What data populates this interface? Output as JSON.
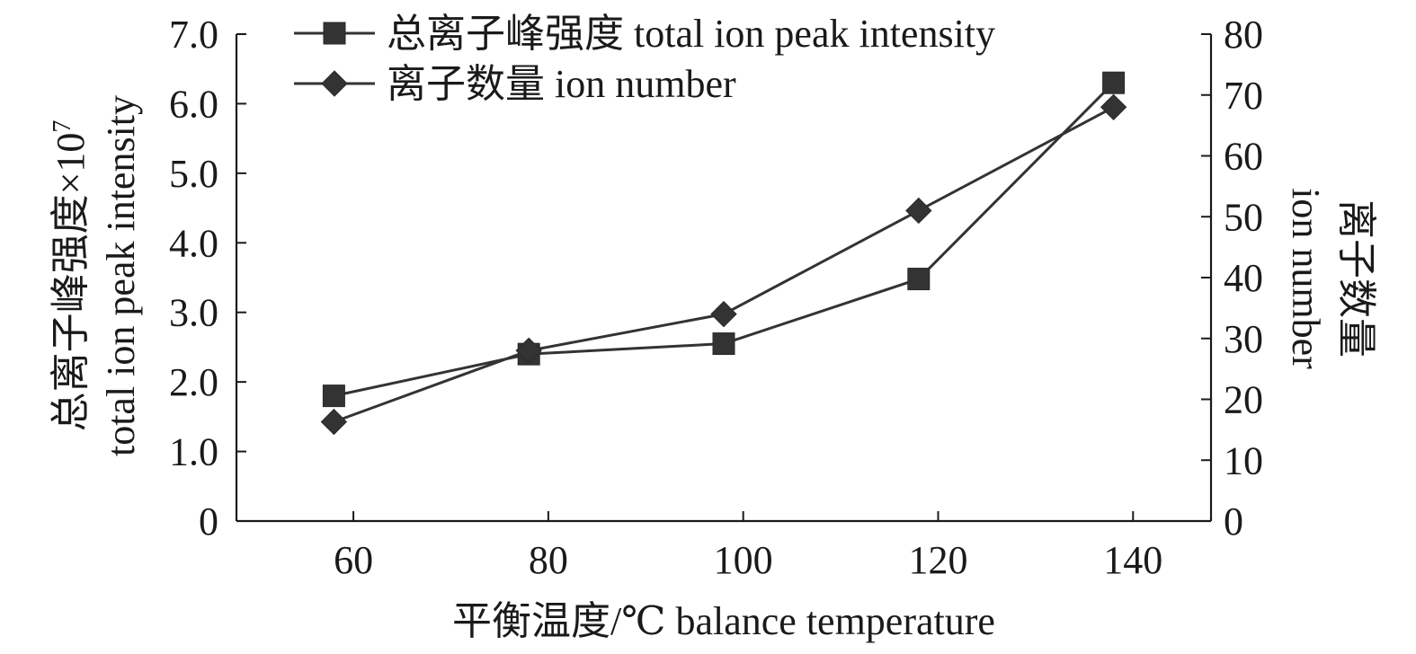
{
  "chart_data": {
    "type": "line",
    "x": [
      58,
      78,
      98,
      118,
      138
    ],
    "xlim": [
      48,
      148
    ],
    "xticks": [
      60,
      80,
      100,
      120,
      140
    ],
    "xlabel": "平衡温度/℃ balance temperature",
    "ylabel_left": {
      "line1": "总离子峰强度×10",
      "exponent": "7",
      "line2": "total ion peak intensity"
    },
    "ylim_left": [
      0,
      7
    ],
    "yticks_left": [
      "0",
      "1.0",
      "2.0",
      "3.0",
      "4.0",
      "5.0",
      "6.0",
      "7.0"
    ],
    "ylabel_right": {
      "line1": "离子数量",
      "line2": "ion number"
    },
    "ylim_right": [
      0,
      80
    ],
    "yticks_right": [
      "0",
      "10",
      "20",
      "30",
      "40",
      "50",
      "60",
      "70",
      "80"
    ],
    "legend_position": "top-left",
    "series": [
      {
        "name": "总离子峰强度 total ion peak intensity",
        "axis": "left",
        "marker": "square",
        "values": [
          1.8,
          2.4,
          2.55,
          3.48,
          6.3
        ]
      },
      {
        "name": "离子数量 ion number",
        "axis": "right",
        "marker": "diamond",
        "values": [
          16.3,
          28,
          34,
          51,
          68
        ]
      }
    ],
    "colors": {
      "line": "#333333",
      "axis": "#1a1a1a"
    }
  }
}
